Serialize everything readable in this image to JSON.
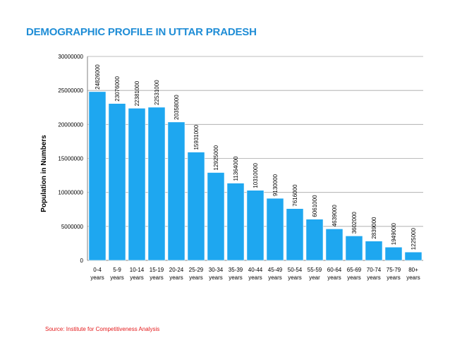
{
  "page": {
    "title": "DEMOGRAPHIC PROFILE IN UTTAR PRADESH",
    "source": "Source: Institute for Competitiveness Analysis"
  },
  "chart_data": {
    "type": "bar",
    "title": "DEMOGRAPHIC PROFILE IN UTTAR PRADESH",
    "xlabel": "",
    "ylabel": "Population in Numbers",
    "ylim": [
      0,
      30000000
    ],
    "yticks": [
      "0",
      "5000000",
      "10000000",
      "15000000",
      "20000000",
      "25000000",
      "30000000"
    ],
    "categories": [
      [
        "0-4",
        "years"
      ],
      [
        "5-9",
        "years"
      ],
      [
        "10-14",
        "years"
      ],
      [
        "15-19",
        "years"
      ],
      [
        "20-24",
        "years"
      ],
      [
        "25-29",
        "years"
      ],
      [
        "30-34",
        "years"
      ],
      [
        "35-39",
        "years"
      ],
      [
        "40-44",
        "years"
      ],
      [
        "45-49",
        "years"
      ],
      [
        "50-54",
        "years"
      ],
      [
        "55-59",
        "year"
      ],
      [
        "60-64",
        "years"
      ],
      [
        "65-69",
        "years"
      ],
      [
        "70-74",
        "years"
      ],
      [
        "75-79",
        "years"
      ],
      [
        "80+",
        "years"
      ]
    ],
    "values": [
      24826000,
      23076000,
      22381000,
      22531000,
      20358000,
      15931000,
      12925000,
      11364000,
      10310000,
      9130000,
      7616000,
      6061000,
      4639000,
      3602000,
      2839000,
      1949000,
      1225000
    ],
    "data_labels": [
      "24826000",
      "23076000",
      "22381000",
      "22531000",
      "20358000",
      "15931000",
      "12925000",
      "11364000",
      "10310000",
      "9130000",
      "7616000",
      "6061000",
      "4639000",
      "3602000",
      "2839000",
      "1949000",
      "1225000"
    ],
    "grid": true,
    "legend": "none",
    "colors": {
      "bar": "#1ea7f0",
      "bar_edge": "#ffffff",
      "grid": "#a6a6a6",
      "axis": "#808080",
      "text": "#000000"
    }
  }
}
